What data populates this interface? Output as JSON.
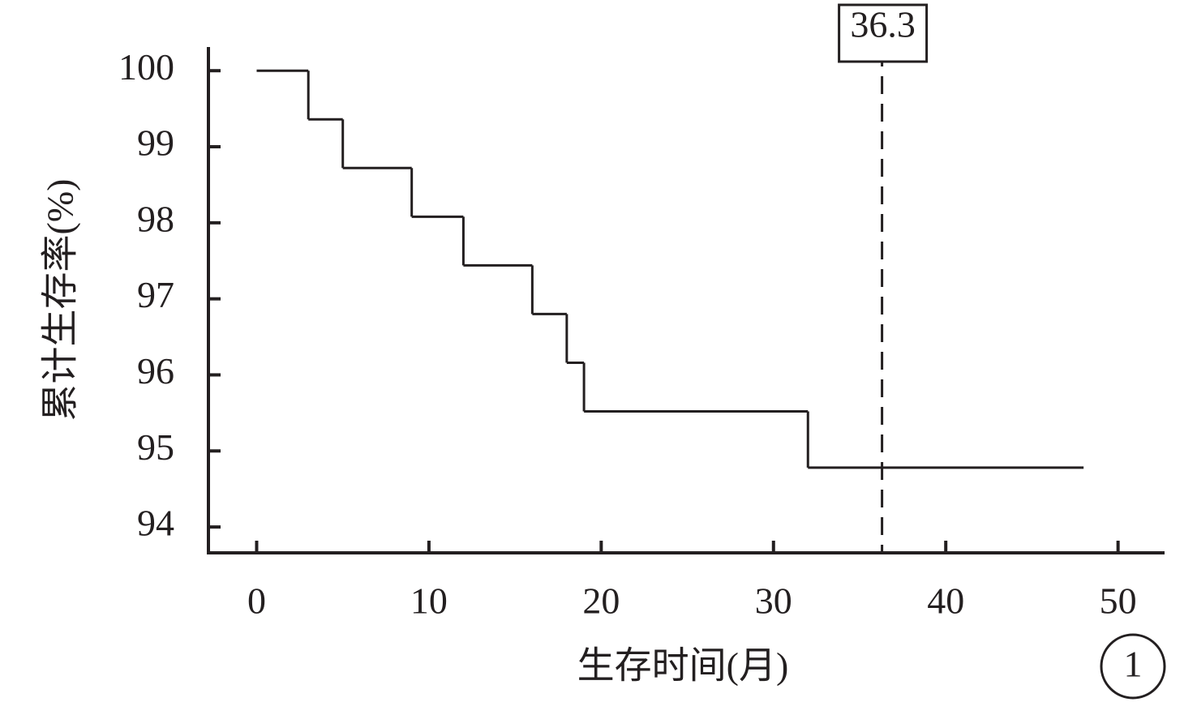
{
  "chart_data": {
    "type": "step",
    "y_label": "累计生存率(%)",
    "x_label": "生存时间(月)",
    "panel_label": "1",
    "x": [
      0,
      3,
      5,
      9,
      12,
      16,
      18,
      19,
      32,
      48
    ],
    "values": [
      100,
      99.36,
      98.72,
      98.08,
      97.44,
      96.8,
      96.16,
      95.52,
      94.78,
      94.78
    ],
    "color": "#231f20",
    "xlim": [
      -2.8,
      52.7
    ],
    "xticks": [
      0,
      10,
      20,
      30,
      40,
      50
    ],
    "ylim": [
      93.66,
      100.29
    ],
    "yticks": [
      94,
      95,
      96,
      97,
      98,
      99,
      100
    ],
    "vline": 36.3
  }
}
